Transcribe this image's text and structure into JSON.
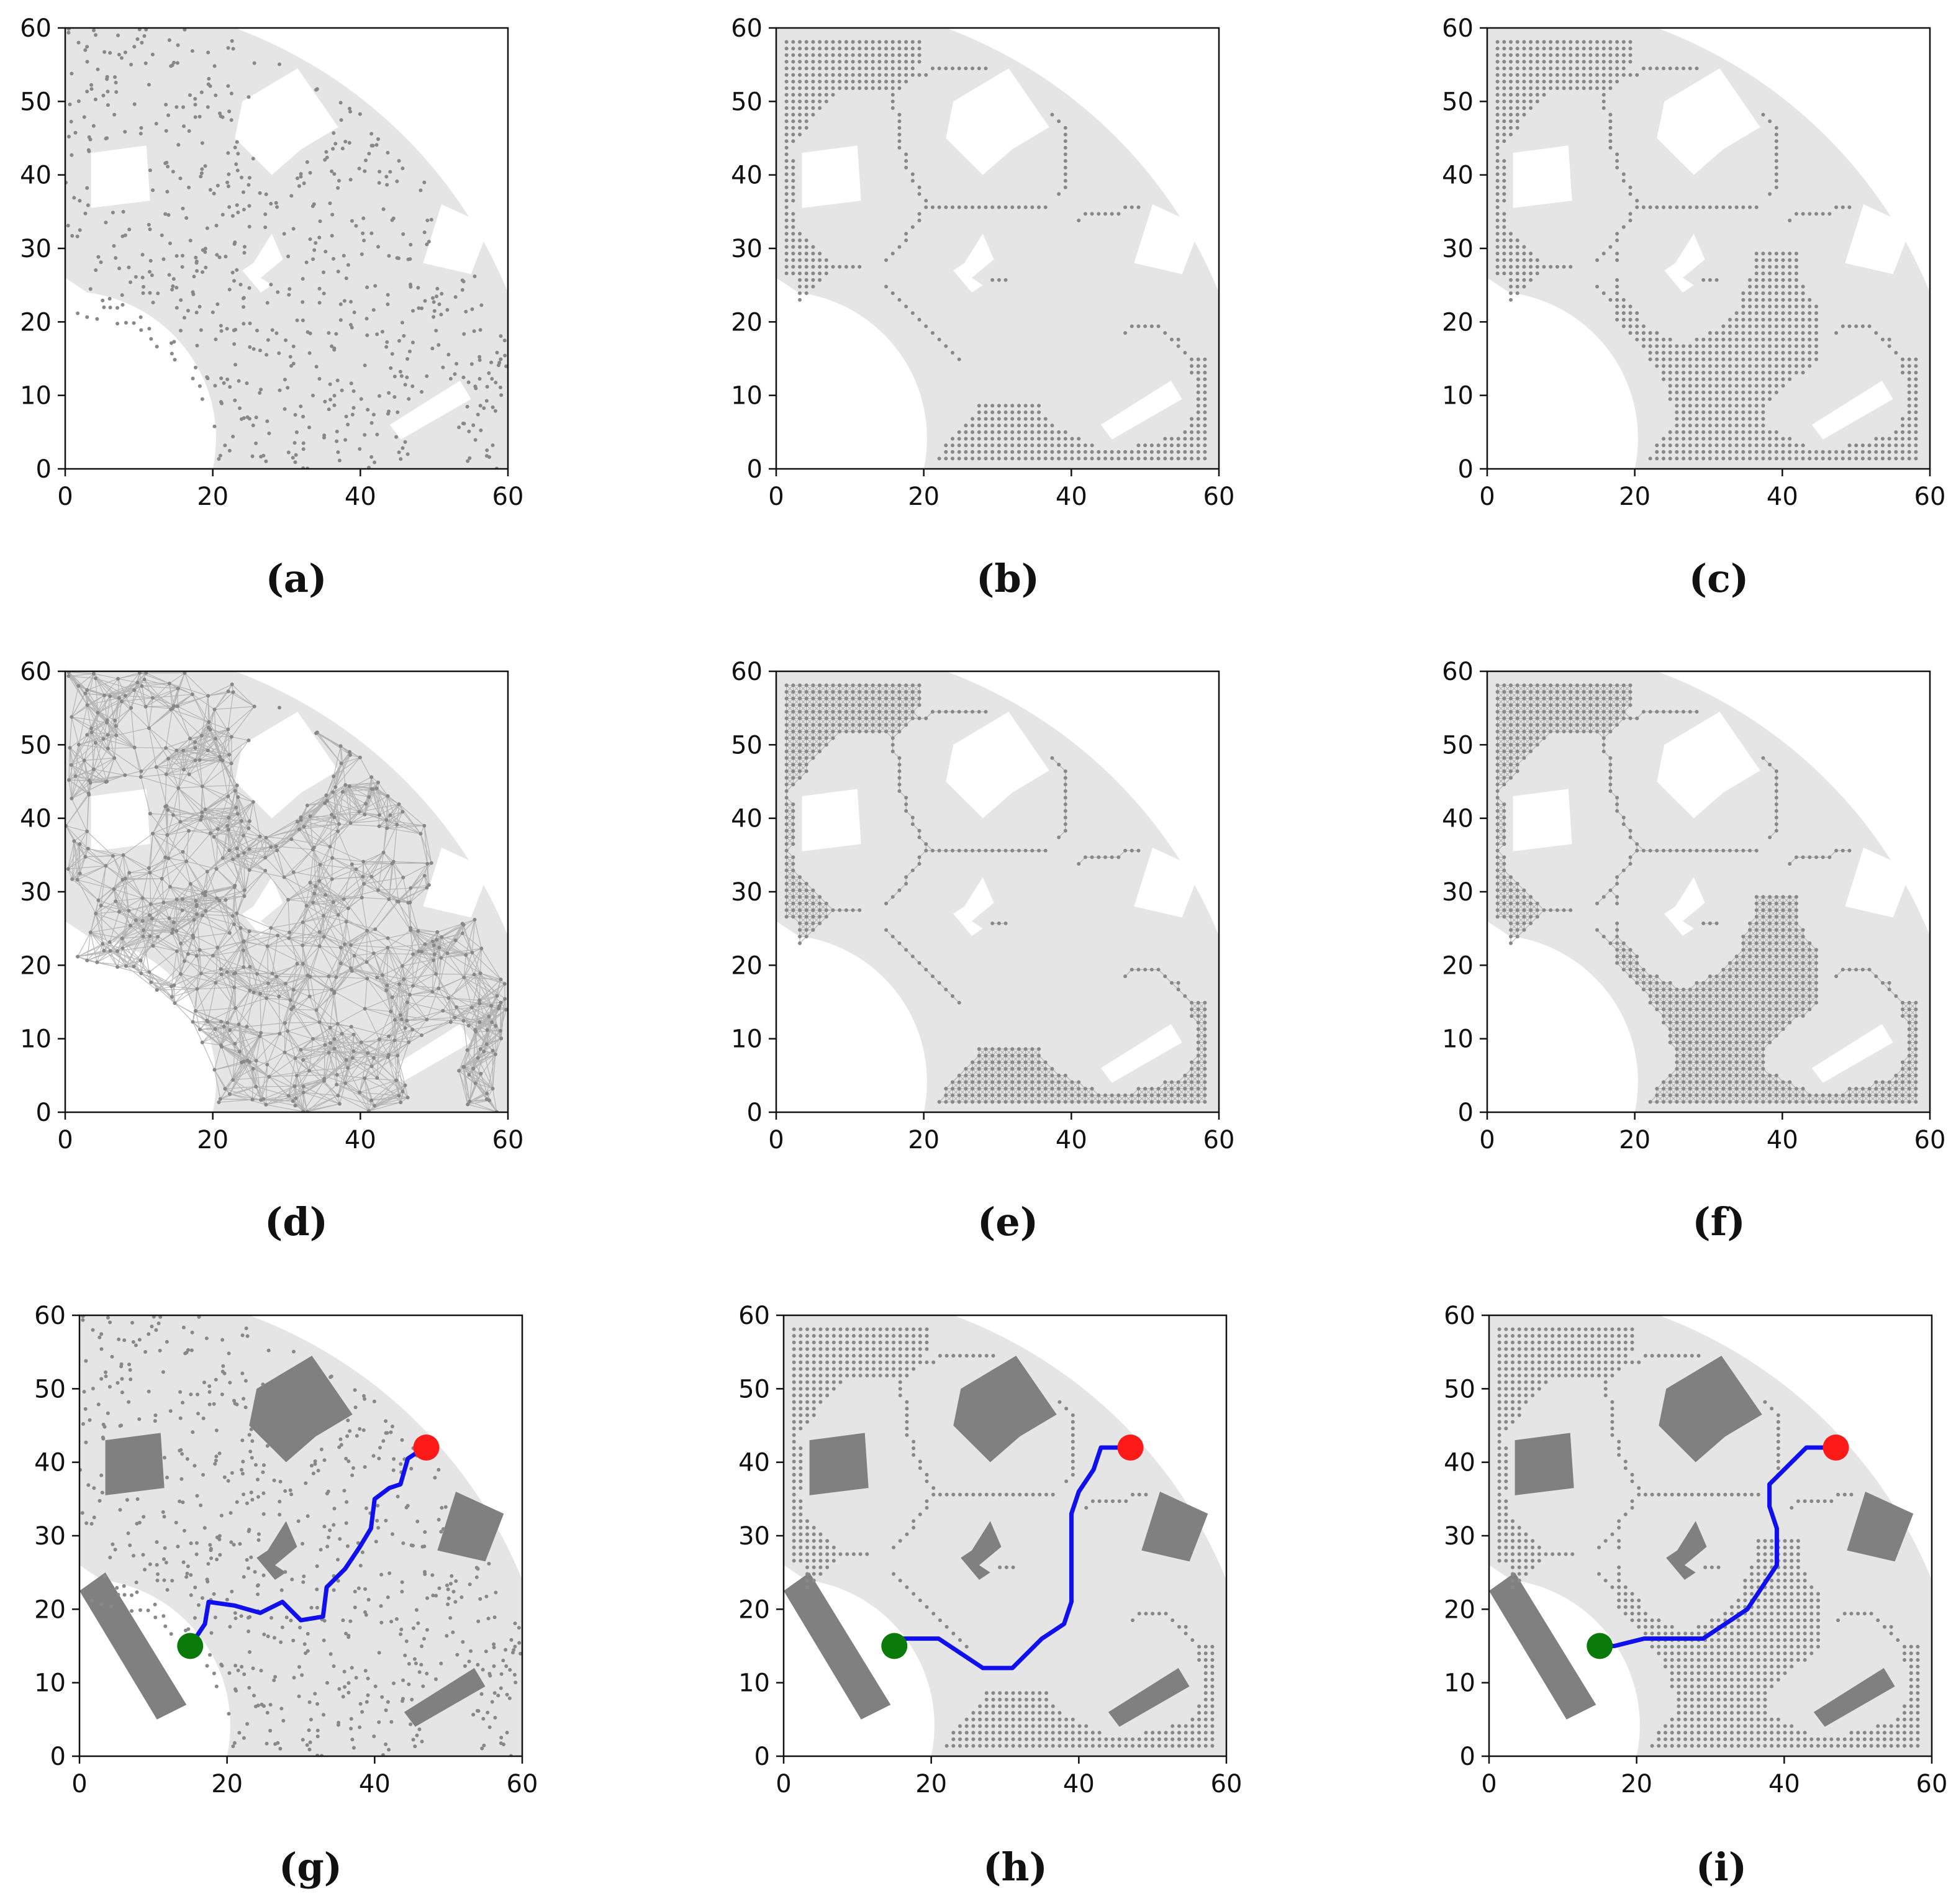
{
  "figure": {
    "captions": [
      "(a)",
      "(b)",
      "(c)",
      "(d)",
      "(e)",
      "(f)",
      "(g)",
      "(h)",
      "(i)"
    ]
  },
  "chart_data": [
    {
      "panel": "a",
      "type": "scatter",
      "title": "",
      "xlabel": "",
      "ylabel": "",
      "xlim": [
        0,
        60
      ],
      "ylim": [
        0,
        60
      ],
      "xticks": [
        0,
        20,
        40,
        60
      ],
      "yticks": [
        0,
        10,
        20,
        30,
        40,
        50,
        60
      ],
      "free_space_color": "#e5e5e5",
      "obstacle_color": "#ffffff",
      "sample_color": "#888888",
      "sampling": "random",
      "roadmap_edges": false,
      "path": null
    },
    {
      "panel": "b",
      "type": "scatter",
      "title": "",
      "xlabel": "",
      "ylabel": "",
      "xlim": [
        0,
        60
      ],
      "ylim": [
        0,
        60
      ],
      "xticks": [
        0,
        20,
        40,
        60
      ],
      "yticks": [
        0,
        10,
        20,
        30,
        40,
        50,
        60
      ],
      "free_space_color": "#e5e5e5",
      "obstacle_color": "#ffffff",
      "sample_color": "#888888",
      "sampling": "medial-axis",
      "roadmap_edges": false,
      "path": null
    },
    {
      "panel": "c",
      "type": "scatter",
      "title": "",
      "xlabel": "",
      "ylabel": "",
      "xlim": [
        0,
        60
      ],
      "ylim": [
        0,
        60
      ],
      "xticks": [
        0,
        20,
        40,
        60
      ],
      "yticks": [
        0,
        10,
        20,
        30,
        40,
        50,
        60
      ],
      "free_space_color": "#e5e5e5",
      "obstacle_color": "#ffffff",
      "sample_color": "#888888",
      "sampling": "medial-axis-with-open-area-grid",
      "roadmap_edges": false,
      "path": null
    },
    {
      "panel": "d",
      "type": "scatter",
      "title": "",
      "xlabel": "",
      "ylabel": "",
      "xlim": [
        0,
        60
      ],
      "ylim": [
        0,
        60
      ],
      "xticks": [
        0,
        20,
        40,
        60
      ],
      "yticks": [
        0,
        10,
        20,
        30,
        40,
        50,
        60
      ],
      "free_space_color": "#e5e5e5",
      "obstacle_color": "#ffffff",
      "sample_color": "#888888",
      "sampling": "random",
      "roadmap_edges": true,
      "path": null
    },
    {
      "panel": "e",
      "type": "scatter",
      "title": "",
      "xlabel": "",
      "ylabel": "",
      "xlim": [
        0,
        60
      ],
      "ylim": [
        0,
        60
      ],
      "xticks": [
        0,
        20,
        40,
        60
      ],
      "yticks": [
        0,
        10,
        20,
        30,
        40,
        50,
        60
      ],
      "free_space_color": "#e5e5e5",
      "obstacle_color": "#ffffff",
      "sample_color": "#888888",
      "sampling": "medial-axis",
      "roadmap_edges": true,
      "path": null
    },
    {
      "panel": "f",
      "type": "scatter",
      "title": "",
      "xlabel": "",
      "ylabel": "",
      "xlim": [
        0,
        60
      ],
      "ylim": [
        0,
        60
      ],
      "xticks": [
        0,
        20,
        40,
        60
      ],
      "yticks": [
        0,
        10,
        20,
        30,
        40,
        50,
        60
      ],
      "free_space_color": "#e5e5e5",
      "obstacle_color": "#ffffff",
      "sample_color": "#888888",
      "sampling": "medial-axis-with-open-area-grid",
      "roadmap_edges": true,
      "path": null
    },
    {
      "panel": "g",
      "type": "scatter",
      "title": "",
      "xlabel": "",
      "ylabel": "",
      "xlim": [
        0,
        60
      ],
      "ylim": [
        0,
        60
      ],
      "xticks": [
        0,
        20,
        40,
        60
      ],
      "yticks": [
        0,
        10,
        20,
        30,
        40,
        50,
        60
      ],
      "free_space_color": "#e5e5e5",
      "obstacle_color": "#808080",
      "sample_color": "#888888",
      "sampling": "random",
      "roadmap_edges": false,
      "start": {
        "x": 15,
        "y": 15,
        "color": "#0a7a0a"
      },
      "goal": {
        "x": 47,
        "y": 42,
        "color": "#ff1a1a"
      },
      "path_color": "#1010ee",
      "path": [
        [
          15,
          15
        ],
        [
          17,
          18
        ],
        [
          17.5,
          21
        ],
        [
          21,
          20.5
        ],
        [
          24.5,
          19.5
        ],
        [
          27.5,
          21
        ],
        [
          30,
          18.5
        ],
        [
          33,
          19
        ],
        [
          33.5,
          23
        ],
        [
          36,
          25.5
        ],
        [
          38,
          28.5
        ],
        [
          39.5,
          31
        ],
        [
          40,
          35
        ],
        [
          42,
          36.5
        ],
        [
          43.5,
          37
        ],
        [
          44.5,
          40.5
        ],
        [
          46,
          41.5
        ],
        [
          47,
          42
        ]
      ]
    },
    {
      "panel": "h",
      "type": "scatter",
      "title": "",
      "xlabel": "",
      "ylabel": "",
      "xlim": [
        0,
        60
      ],
      "ylim": [
        0,
        60
      ],
      "xticks": [
        0,
        20,
        40,
        60
      ],
      "yticks": [
        0,
        10,
        20,
        30,
        40,
        50,
        60
      ],
      "free_space_color": "#e5e5e5",
      "obstacle_color": "#808080",
      "sample_color": "#888888",
      "sampling": "medial-axis",
      "roadmap_edges": false,
      "start": {
        "x": 15,
        "y": 15,
        "color": "#0a7a0a"
      },
      "goal": {
        "x": 47,
        "y": 42,
        "color": "#ff1a1a"
      },
      "path_color": "#1010ee",
      "path": [
        [
          15,
          15
        ],
        [
          16,
          16
        ],
        [
          21,
          16
        ],
        [
          24,
          14
        ],
        [
          27,
          12
        ],
        [
          31,
          12
        ],
        [
          35,
          16
        ],
        [
          38,
          18
        ],
        [
          39,
          21
        ],
        [
          39,
          29
        ],
        [
          39,
          33
        ],
        [
          40,
          36
        ],
        [
          42,
          39
        ],
        [
          43,
          42
        ],
        [
          47,
          42
        ]
      ]
    },
    {
      "panel": "i",
      "type": "scatter",
      "title": "",
      "xlabel": "",
      "ylabel": "",
      "xlim": [
        0,
        60
      ],
      "ylim": [
        0,
        60
      ],
      "xticks": [
        0,
        20,
        40,
        60
      ],
      "yticks": [
        0,
        10,
        20,
        30,
        40,
        50,
        60
      ],
      "free_space_color": "#e5e5e5",
      "obstacle_color": "#808080",
      "sample_color": "#888888",
      "sampling": "medial-axis-with-open-area-grid",
      "roadmap_edges": false,
      "start": {
        "x": 15,
        "y": 15,
        "color": "#0a7a0a"
      },
      "goal": {
        "x": 47,
        "y": 42,
        "color": "#ff1a1a"
      },
      "path_color": "#1010ee",
      "path": [
        [
          15,
          15
        ],
        [
          17,
          15
        ],
        [
          21,
          16
        ],
        [
          29,
          16
        ],
        [
          32,
          18
        ],
        [
          35,
          20
        ],
        [
          37,
          23
        ],
        [
          39,
          26
        ],
        [
          39,
          31
        ],
        [
          38,
          34
        ],
        [
          38,
          37
        ],
        [
          40,
          39
        ],
        [
          41,
          40
        ],
        [
          43,
          42
        ],
        [
          47,
          42
        ]
      ]
    }
  ]
}
